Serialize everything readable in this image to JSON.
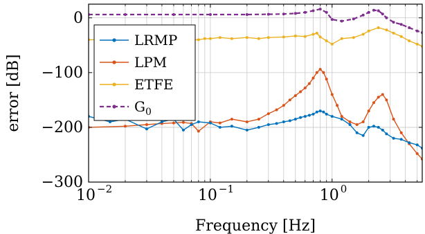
{
  "chart_data": {
    "type": "line",
    "title": "",
    "xlabel": "Frequency [Hz]",
    "ylabel": "error [dB]",
    "xscale": "log",
    "xlim": [
      0.01,
      5.5
    ],
    "ylim": [
      -300,
      25
    ],
    "yticks": [
      0,
      -100,
      -200,
      -300
    ],
    "ytick_labels": [
      "0",
      "−100",
      "−200",
      "−300"
    ],
    "xticks": [
      0.01,
      0.1,
      1
    ],
    "xtick_labels": [
      {
        "base": "10",
        "exp": "−2"
      },
      {
        "base": "10",
        "exp": "−1"
      },
      {
        "base": "10",
        "exp": "0"
      }
    ],
    "grid": true,
    "legend_position": "upper-left",
    "colors": {
      "LRMP": "#0072BD",
      "LPM": "#D95319",
      "ETFE": "#EDB120",
      "G0": "#7E2F8E"
    },
    "series": [
      {
        "name": "LRMP",
        "legend_label": "LRMP",
        "color": "#0072BD",
        "style": "solid",
        "x": [
          0.01,
          0.015,
          0.02,
          0.03,
          0.04,
          0.05,
          0.06,
          0.07,
          0.08,
          0.1,
          0.12,
          0.15,
          0.2,
          0.25,
          0.3,
          0.35,
          0.4,
          0.45,
          0.5,
          0.55,
          0.6,
          0.65,
          0.7,
          0.75,
          0.8,
          0.85,
          0.9,
          1.0,
          1.2,
          1.4,
          1.6,
          1.8,
          2.0,
          2.2,
          2.4,
          2.6,
          2.8,
          3.2,
          3.7,
          4.3,
          5.0,
          5.5
        ],
        "y": [
          -180,
          -190,
          -185,
          -203,
          -190,
          -185,
          -205,
          -195,
          -190,
          -192,
          -200,
          -198,
          -205,
          -200,
          -195,
          -193,
          -190,
          -188,
          -185,
          -182,
          -180,
          -178,
          -176,
          -172,
          -170,
          -172,
          -176,
          -180,
          -185,
          -195,
          -210,
          -215,
          -200,
          -198,
          -200,
          -205,
          -212,
          -220,
          -222,
          -228,
          -232,
          -238
        ]
      },
      {
        "name": "LPM",
        "legend_label": "LPM",
        "color": "#D95319",
        "style": "solid",
        "x": [
          0.01,
          0.02,
          0.03,
          0.04,
          0.05,
          0.06,
          0.07,
          0.08,
          0.1,
          0.12,
          0.15,
          0.2,
          0.25,
          0.3,
          0.35,
          0.4,
          0.45,
          0.5,
          0.55,
          0.6,
          0.65,
          0.7,
          0.75,
          0.8,
          0.85,
          0.9,
          1.0,
          1.1,
          1.2,
          1.4,
          1.6,
          1.8,
          2.0,
          2.2,
          2.4,
          2.6,
          2.8,
          3.2,
          3.7,
          4.3,
          5.0,
          5.5
        ],
        "y": [
          -200,
          -198,
          -195,
          -193,
          -192,
          -191,
          -193,
          -207,
          -190,
          -192,
          -185,
          -190,
          -185,
          -175,
          -168,
          -160,
          -150,
          -142,
          -135,
          -128,
          -120,
          -110,
          -100,
          -94,
          -100,
          -112,
          -140,
          -160,
          -180,
          -190,
          -195,
          -190,
          -170,
          -155,
          -145,
          -140,
          -150,
          -185,
          -210,
          -230,
          -248,
          -258
        ]
      },
      {
        "name": "ETFE",
        "legend_label": "ETFE",
        "color": "#EDB120",
        "style": "solid",
        "x": [
          0.01,
          0.05,
          0.06,
          0.07,
          0.08,
          0.09,
          0.1,
          0.12,
          0.15,
          0.2,
          0.25,
          0.3,
          0.4,
          0.5,
          0.6,
          0.7,
          0.75,
          0.8,
          0.9,
          1.0,
          1.2,
          1.5,
          1.8,
          2.0,
          2.4,
          2.8,
          3.2,
          3.7,
          4.3,
          5.0,
          5.5
        ],
        "y": [
          -40,
          -40,
          -40,
          -40,
          -40,
          -38,
          -38,
          -36,
          -38,
          -36,
          -38,
          -36,
          -35,
          -33,
          -34,
          -30,
          -28,
          -35,
          -42,
          -48,
          -38,
          -36,
          -30,
          -24,
          -18,
          -22,
          -28,
          -34,
          -42,
          -48,
          -52
        ]
      },
      {
        "name": "G0",
        "legend_label": "G",
        "legend_subscript": "0",
        "color": "#7E2F8E",
        "style": "dashed",
        "x": [
          0.01,
          0.02,
          0.05,
          0.1,
          0.2,
          0.3,
          0.4,
          0.5,
          0.6,
          0.7,
          0.8,
          0.9,
          1.0,
          1.2,
          1.5,
          1.8,
          2.0,
          2.2,
          2.4,
          2.6,
          2.8,
          3.2,
          3.7,
          4.3,
          5.0,
          5.5
        ],
        "y": [
          6,
          6,
          6,
          6,
          6,
          6.5,
          7,
          8,
          10,
          13,
          16,
          10,
          -3,
          -6,
          -2,
          5,
          10,
          14,
          13,
          7,
          0,
          -8,
          -12,
          -18,
          -24,
          -27
        ]
      }
    ]
  }
}
